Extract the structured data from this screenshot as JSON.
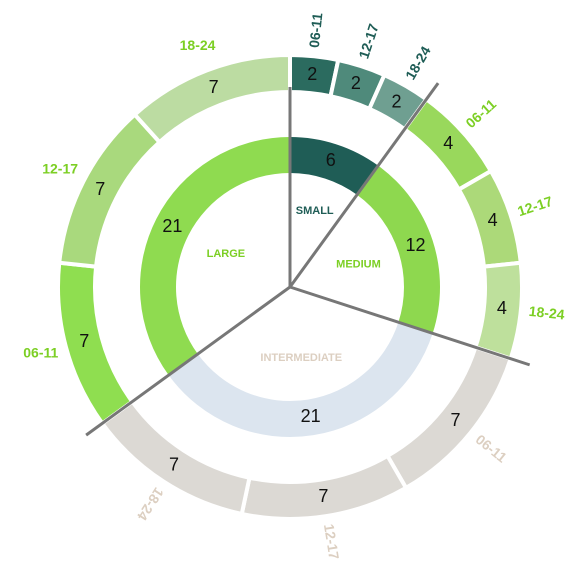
{
  "chart_data": {
    "type": "sunburst",
    "categories": [
      {
        "name": "SMALL",
        "value": 6,
        "color": "#1f5d56",
        "label_color": "#1f5d56",
        "children": [
          {
            "name": "06-11",
            "value": 2,
            "color": "#2b6b5f"
          },
          {
            "name": "12-17",
            "value": 2,
            "color": "#4f8a7b"
          },
          {
            "name": "18-24",
            "value": 2,
            "color": "#6f9f91"
          }
        ]
      },
      {
        "name": "MEDIUM",
        "value": 12,
        "color": "#8ed84f",
        "label_color": "#7ccf24",
        "children": [
          {
            "name": "06-11",
            "value": 4,
            "color": "#99d85c"
          },
          {
            "name": "12-17",
            "value": 4,
            "color": "#acd979"
          },
          {
            "name": "18-24",
            "value": 4,
            "color": "#bee09c"
          }
        ]
      },
      {
        "name": "INTERMEDIATE",
        "value": 21,
        "color": "#dce5ef",
        "label_color": "#dccfc1",
        "children": [
          {
            "name": "06-11",
            "value": 7,
            "color": "#dcd9d4"
          },
          {
            "name": "12-17",
            "value": 7,
            "color": "#dcd9d4"
          },
          {
            "name": "18-24",
            "value": 7,
            "color": "#dcd9d4"
          }
        ]
      },
      {
        "name": "LARGE",
        "value": 21,
        "color": "#8fdb50",
        "label_color": "#7ccf24",
        "children": [
          {
            "name": "06-11",
            "value": 7,
            "color": "#8fde50"
          },
          {
            "name": "12-17",
            "value": 7,
            "color": "#a9d97d"
          },
          {
            "name": "18-24",
            "value": 7,
            "color": "#bcdca2"
          }
        ]
      }
    ]
  }
}
